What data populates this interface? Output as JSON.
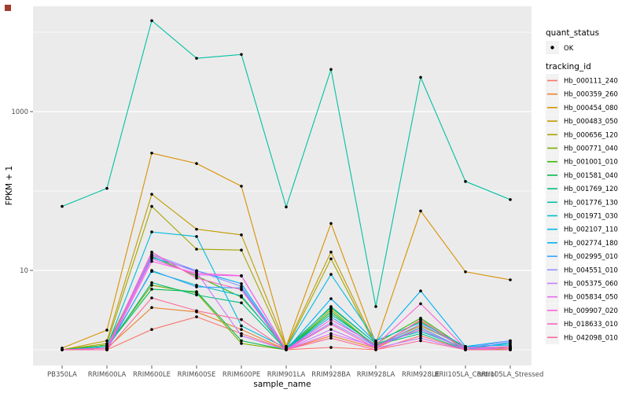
{
  "figure": {
    "background": "#FFFFFF",
    "panel_background": "#EBEBEB",
    "grid_color": "#FFFFFF",
    "tick_color": "#333333",
    "tick_text_color": "#4D4D4D",
    "corner_mark_color": "#A03B2E"
  },
  "chart_data": {
    "type": "line",
    "title": "",
    "xlabel": "sample_name",
    "ylabel": "FPKM + 1",
    "y_scale": "log10",
    "ylim": [
      0.6,
      21000
    ],
    "grid": true,
    "legend_position": "right",
    "y_ticks": [
      {
        "value": 1000,
        "label": "1000"
      },
      {
        "value": 10,
        "label": "10"
      }
    ],
    "grid_decades": [
      1,
      10,
      100,
      1000,
      10000
    ],
    "categories": [
      "PB350LA",
      "RRIM600LA",
      "RRIM600LE",
      "RRIM600SE",
      "RRIM600PE",
      "RRIM901LA",
      "RRIM928BA",
      "RRIM928LA",
      "RRIM928LE",
      "RRII105LA_Control",
      "RRII105LA_Stressed"
    ],
    "point_color": "#000000",
    "series": [
      {
        "name": "Hb_000111_240",
        "color": "#F8766D",
        "values": [
          1,
          1,
          1.8,
          2.6,
          1.6,
          1,
          1.07,
          1,
          1.5,
          1,
          1
        ]
      },
      {
        "name": "Hb_000359_260",
        "color": "#EA8331",
        "values": [
          1,
          1.05,
          3.4,
          3.0,
          1.8,
          1,
          1.5,
          1.05,
          1.9,
          1,
          1.05
        ]
      },
      {
        "name": "Hb_000454_080",
        "color": "#D89000",
        "values": [
          1.05,
          1.77,
          300,
          222,
          115,
          1.1,
          39,
          1.2,
          56,
          9.6,
          7.6
        ]
      },
      {
        "name": "Hb_000483_050",
        "color": "#C09B00",
        "values": [
          1,
          1.3,
          91,
          33,
          28,
          1.1,
          17,
          1.15,
          2.0,
          1.1,
          1.05
        ]
      },
      {
        "name": "Hb_000656_120",
        "color": "#A3A500",
        "values": [
          1,
          1.2,
          64,
          18.5,
          18,
          1.05,
          14,
          1.1,
          2.1,
          1.05,
          1
        ]
      },
      {
        "name": "Hb_000771_040",
        "color": "#7CAE00",
        "values": [
          1,
          1.1,
          6.5,
          5.2,
          1.2,
          1,
          3.2,
          1.1,
          2.3,
          1,
          1.05
        ]
      },
      {
        "name": "Hb_001001_010",
        "color": "#39B600",
        "values": [
          1,
          1.15,
          15,
          8.5,
          4.6,
          1.05,
          3.4,
          1.2,
          2.5,
          1.05,
          1.1
        ]
      },
      {
        "name": "Hb_001581_040",
        "color": "#00BB4E",
        "values": [
          1,
          1.1,
          5.8,
          5.4,
          1.3,
          1,
          3.0,
          1.1,
          1.8,
          1,
          1
        ]
      },
      {
        "name": "Hb_001769_120",
        "color": "#00BF7D",
        "values": [
          1,
          1.05,
          7.0,
          4.9,
          3.9,
          1,
          2.8,
          1.15,
          1.6,
          1,
          1.1
        ]
      },
      {
        "name": "Hb_001776_130",
        "color": "#00C1A3",
        "values": [
          64,
          108,
          14000,
          4700,
          5250,
          63,
          3400,
          3.5,
          2700,
          132,
          78
        ]
      },
      {
        "name": "Hb_001971_030",
        "color": "#00BFC4",
        "values": [
          1,
          1.05,
          9.7,
          6.5,
          4.8,
          1,
          3.5,
          1.2,
          1.7,
          1.05,
          1.2
        ]
      },
      {
        "name": "Hb_002107_110",
        "color": "#00BAE0",
        "values": [
          1,
          1.1,
          30.5,
          26.7,
          2.0,
          1.05,
          8.9,
          1.3,
          2.2,
          1.1,
          1.15
        ]
      },
      {
        "name": "Hb_002774_180",
        "color": "#00B0F6",
        "values": [
          1,
          1.05,
          14.5,
          9.9,
          6.8,
          1,
          4.4,
          1.25,
          5.5,
          1.1,
          1.3
        ]
      },
      {
        "name": "Hb_002995_010",
        "color": "#35A2FF",
        "values": [
          1,
          1,
          10,
          6.2,
          6.0,
          1,
          2.6,
          1.1,
          1.9,
          1,
          1.25
        ]
      },
      {
        "name": "Hb_004551_010",
        "color": "#9590FF",
        "values": [
          1,
          1.05,
          16,
          9.9,
          6.3,
          1,
          2.2,
          1.1,
          2.1,
          1.05,
          1.3
        ]
      },
      {
        "name": "Hb_005375_060",
        "color": "#C77CFF",
        "values": [
          1,
          1,
          15.5,
          9.5,
          1.5,
          1,
          1.8,
          1.05,
          1.4,
          1,
          1.1
        ]
      },
      {
        "name": "Hb_005834_050",
        "color": "#E76BF3",
        "values": [
          1,
          1.05,
          14,
          8.8,
          8.5,
          1,
          1.6,
          1.1,
          1.8,
          1,
          1.05
        ]
      },
      {
        "name": "Hb_009907_020",
        "color": "#FA62DB",
        "values": [
          1,
          1,
          13,
          9.2,
          8.6,
          1,
          2.4,
          1.15,
          3.8,
          1.05,
          1.1
        ]
      },
      {
        "name": "Hb_018633_010",
        "color": "#FF62BC",
        "values": [
          1,
          1.05,
          17,
          8.0,
          5.7,
          1,
          2.1,
          1.05,
          2.4,
          1,
          1.05
        ]
      },
      {
        "name": "Hb_042098_010",
        "color": "#FF6A98",
        "values": [
          1,
          1,
          4.5,
          3.1,
          2.4,
          1,
          1.4,
          1,
          1.3,
          1,
          1
        ]
      }
    ]
  },
  "legend": {
    "key_background": "#F2F2F2",
    "quant_status": {
      "title": "quant_status",
      "items": [
        {
          "label": "OK",
          "glyph": "point",
          "color": "#000000"
        }
      ]
    },
    "tracking": {
      "title": "tracking_id"
    }
  }
}
